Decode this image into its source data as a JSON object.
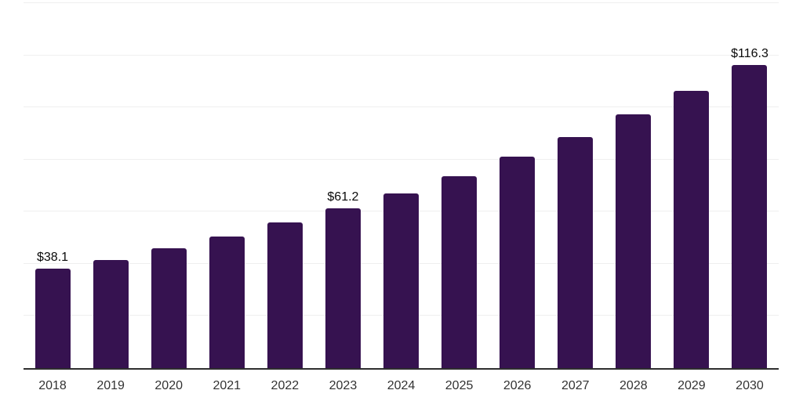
{
  "chart_data": {
    "type": "bar",
    "title": "",
    "xlabel": "",
    "ylabel": "",
    "categories": [
      "2018",
      "2019",
      "2020",
      "2021",
      "2022",
      "2023",
      "2024",
      "2025",
      "2026",
      "2027",
      "2028",
      "2029",
      "2030"
    ],
    "values": [
      38.1,
      41.5,
      46.0,
      50.4,
      55.8,
      61.2,
      67.1,
      73.7,
      81.1,
      88.6,
      97.4,
      106.5,
      116.3
    ],
    "data_labels": [
      "$38.1",
      "",
      "",
      "",
      "",
      "$61.2",
      "",
      "",
      "",
      "",
      "",
      "",
      "$116.3"
    ],
    "ylim": [
      0,
      140
    ],
    "gridline_step": 20,
    "grid": true,
    "legend": false,
    "colors": {
      "bar": "#361250",
      "gridline": "#efefef",
      "axis_line": "#2e2e2e",
      "value_label": "#0a0a0a",
      "tick_label": "#333333",
      "background": "#ffffff"
    }
  }
}
